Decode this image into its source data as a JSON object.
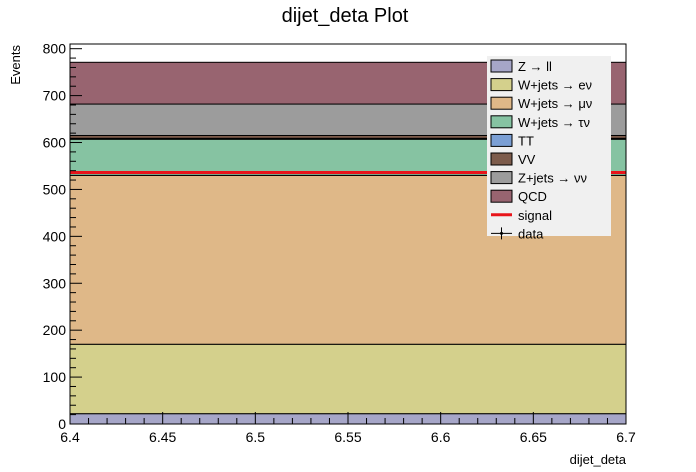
{
  "chart_data": {
    "type": "bar",
    "stacked": true,
    "title": "dijet_deta Plot",
    "xlabel": "dijet_deta",
    "ylabel": "Events",
    "xlim": [
      6.4,
      6.7
    ],
    "ylim": [
      0,
      810
    ],
    "x_ticks": [
      "6.4",
      "6.45",
      "6.5",
      "6.55",
      "6.6",
      "6.65",
      "6.7"
    ],
    "y_ticks": [
      "0",
      "100",
      "200",
      "300",
      "400",
      "500",
      "600",
      "700",
      "800"
    ],
    "bin": [
      6.4,
      6.7
    ],
    "series": [
      {
        "name": "Z → ll",
        "value": 22,
        "color": "#a6a6c8"
      },
      {
        "name": "W+jets → eν",
        "value": 148,
        "color": "#d4d08c"
      },
      {
        "name": "W+jets → μν",
        "value": 360,
        "color": "#dfb888"
      },
      {
        "name": "W+jets → τν",
        "value": 77,
        "color": "#86c3a2"
      },
      {
        "name": "TT",
        "value": 2,
        "color": "#7b9fd4"
      },
      {
        "name": "VV",
        "value": 6,
        "color": "#7d5c4c"
      },
      {
        "name": "Z+jets → νν",
        "value": 67,
        "color": "#9c9c9c"
      },
      {
        "name": "QCD",
        "value": 89,
        "color": "#986470"
      }
    ],
    "signal": {
      "name": "signal",
      "value": 536,
      "color": "#e8141a"
    },
    "data": {
      "name": "data"
    },
    "legend_position": "top-right"
  }
}
